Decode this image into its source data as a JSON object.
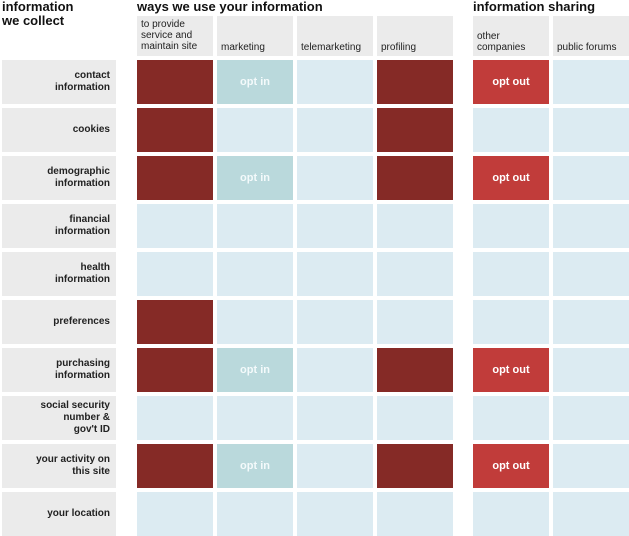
{
  "headers": {
    "collect": "information\nwe collect",
    "use": "ways we use your information",
    "sharing": "information sharing"
  },
  "columns": [
    "to provide service and maintain site",
    "marketing",
    "telemarketing",
    "profiling",
    "other companies",
    "public forums"
  ],
  "rows": [
    {
      "label": "contact\ninformation",
      "cells": [
        "filled",
        "opt in",
        "",
        "filled",
        "opt out",
        ""
      ]
    },
    {
      "label": "cookies",
      "cells": [
        "filled",
        "",
        "",
        "filled",
        "",
        ""
      ]
    },
    {
      "label": "demographic\ninformation",
      "cells": [
        "filled",
        "opt in",
        "",
        "filled",
        "opt out",
        ""
      ]
    },
    {
      "label": "financial\ninformation",
      "cells": [
        "",
        "",
        "",
        "",
        "",
        ""
      ]
    },
    {
      "label": "health\ninformation",
      "cells": [
        "",
        "",
        "",
        "",
        "",
        ""
      ]
    },
    {
      "label": "preferences",
      "cells": [
        "filled",
        "",
        "",
        "",
        "",
        ""
      ]
    },
    {
      "label": "purchasing\ninformation",
      "cells": [
        "filled",
        "opt in",
        "",
        "filled",
        "opt out",
        ""
      ]
    },
    {
      "label": "social security\nnumber &\ngov't ID",
      "cells": [
        "",
        "",
        "",
        "",
        "",
        ""
      ]
    },
    {
      "label": "your activity on\nthis site",
      "cells": [
        "filled",
        "opt in",
        "",
        "filled",
        "opt out",
        ""
      ]
    },
    {
      "label": "your location",
      "cells": [
        "",
        "",
        "",
        "",
        "",
        ""
      ]
    }
  ],
  "colors": {
    "filled": "#852a26",
    "opt_in": "#bad9dc",
    "opt_out": "#c13c3a",
    "empty": "#dcebf2",
    "label_bg": "#ebebeb"
  }
}
